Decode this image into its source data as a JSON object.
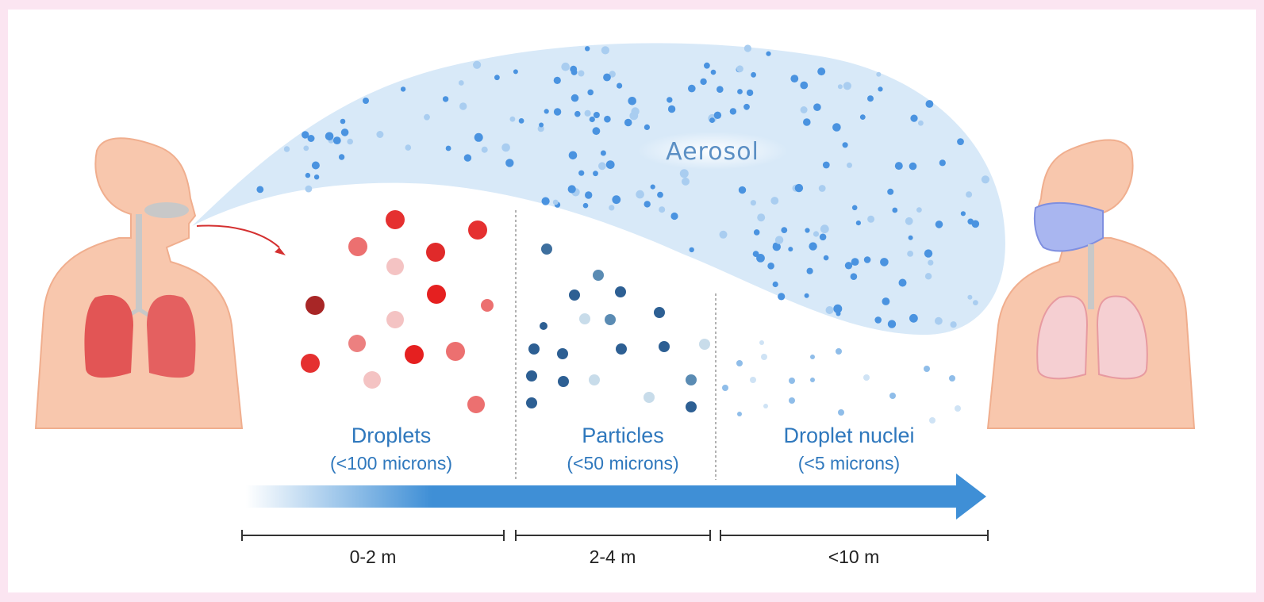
{
  "aerosol_label": "Aerosol",
  "zones": [
    {
      "name": "Droplets",
      "size": "(<100 microns)",
      "distance": "0-2 m"
    },
    {
      "name": "Particles",
      "size": "(<50 microns)",
      "distance": "2-4 m"
    },
    {
      "name": "Droplet nuclei",
      "size": "(<5 microns)",
      "distance": "<10 m"
    }
  ]
}
